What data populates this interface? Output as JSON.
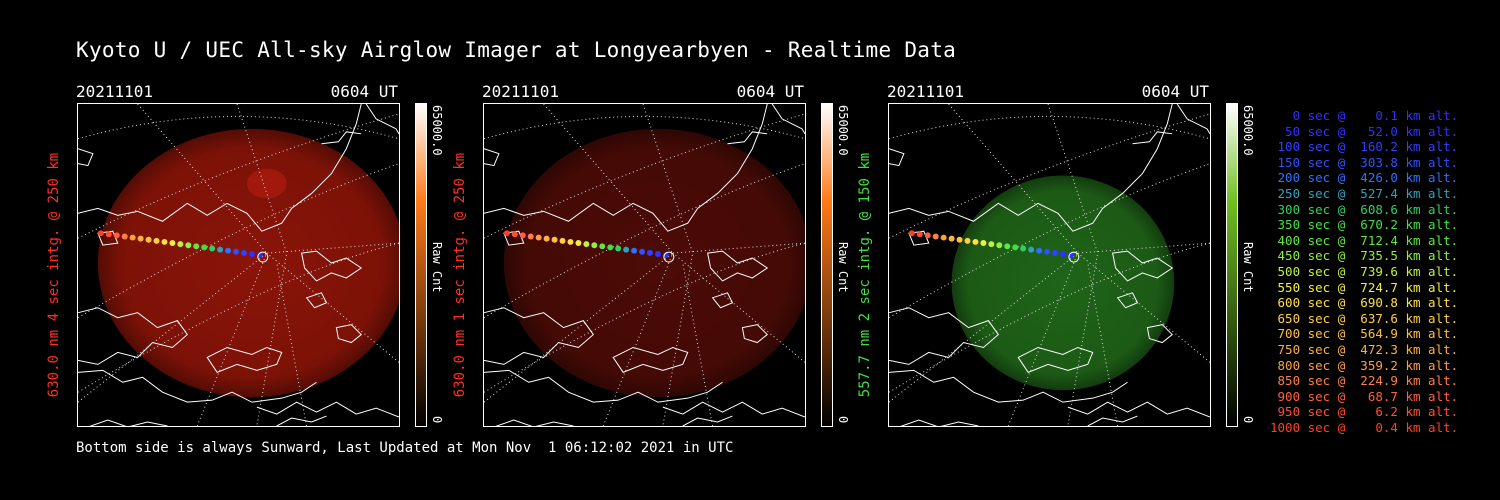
{
  "title": "Kyoto U / UEC All-sky Airglow Imager at Longyearbyen - Realtime Data",
  "footer": "Bottom side is always Sunward, Last Updated at Mon Nov  1 06:12:02 2021 in UTC",
  "panels": [
    {
      "date": "20211101",
      "time": "0604 UT",
      "ylabel": "630.0 nm 4 sec intg. @ 250 km",
      "color": "#ff3020",
      "glow": "#8a1408",
      "cbar_top": "#ffffff",
      "cbar_mid": "#ff7a1a",
      "cbar_bot": "#000000",
      "cmax": "65000.0",
      "cmin": "0",
      "cunit": "Raw Cnt"
    },
    {
      "date": "20211101",
      "time": "0604 UT",
      "ylabel": "630.0 nm 1 sec intg. @ 250 km",
      "color": "#ff3020",
      "glow": "#4c0b06",
      "cbar_top": "#ffffff",
      "cbar_mid": "#ff7a1a",
      "cbar_bot": "#000000",
      "cmax": "65000.0",
      "cmin": "0",
      "cunit": "Raw Cnt"
    },
    {
      "date": "20211101",
      "time": "0604 UT",
      "ylabel": "557.7 nm 2 sec intg. @ 150 km",
      "color": "#40e040",
      "glow": "#1f6418",
      "cbar_top": "#ffffff",
      "cbar_mid": "#70c020",
      "cbar_bot": "#000000",
      "cmax": "65000.0",
      "cmin": "0",
      "cunit": "Raw Cnt"
    }
  ],
  "legend": [
    {
      "text": "   0 sec @    0.1 km alt.",
      "color": "#3030ff"
    },
    {
      "text": "  50 sec @   52.0 km alt.",
      "color": "#3030ff"
    },
    {
      "text": " 100 sec @  160.2 km alt.",
      "color": "#3040ff"
    },
    {
      "text": " 150 sec @  303.8 km alt.",
      "color": "#3050ff"
    },
    {
      "text": " 200 sec @  426.0 km alt.",
      "color": "#3070ff"
    },
    {
      "text": " 250 sec @  527.4 km alt.",
      "color": "#30a0c0"
    },
    {
      "text": " 300 sec @  608.6 km alt.",
      "color": "#30d060"
    },
    {
      "text": " 350 sec @  670.2 km alt.",
      "color": "#40e040"
    },
    {
      "text": " 400 sec @  712.4 km alt.",
      "color": "#60e840"
    },
    {
      "text": " 450 sec @  735.5 km alt.",
      "color": "#90f040"
    },
    {
      "text": " 500 sec @  739.6 km alt.",
      "color": "#c0f040"
    },
    {
      "text": " 550 sec @  724.7 km alt.",
      "color": "#f0f040"
    },
    {
      "text": " 600 sec @  690.8 km alt.",
      "color": "#ffe040"
    },
    {
      "text": " 650 sec @  637.6 km alt.",
      "color": "#ffd040"
    },
    {
      "text": " 700 sec @  564.9 km alt.",
      "color": "#ffc040"
    },
    {
      "text": " 750 sec @  472.3 km alt.",
      "color": "#ffb040"
    },
    {
      "text": " 800 sec @  359.2 km alt.",
      "color": "#ffa040"
    },
    {
      "text": " 850 sec @  224.9 km alt.",
      "color": "#ff8040"
    },
    {
      "text": " 900 sec @   68.7 km alt.",
      "color": "#ff6040"
    },
    {
      "text": " 950 sec @    6.2 km alt.",
      "color": "#ff5030"
    },
    {
      "text": "1000 sec @    0.4 km alt.",
      "color": "#ff4020"
    }
  ]
}
